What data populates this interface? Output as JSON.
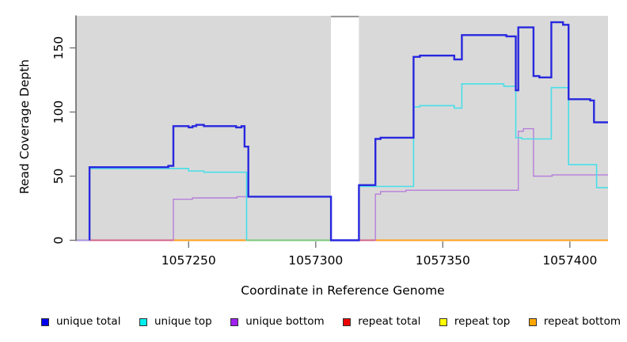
{
  "figure": {
    "x_axis_title": "Coordinate in Reference Genome",
    "y_axis_title": "Read Coverage Depth"
  },
  "chart_data": {
    "type": "line",
    "subtype": "step",
    "title": "",
    "xlabel": "Coordinate in Reference Genome",
    "ylabel": "Read Coverage Depth",
    "xlim": [
      1057206,
      1057415
    ],
    "ylim": [
      0,
      175
    ],
    "x_ticks": [
      1057250,
      1057300,
      1057350,
      1057400
    ],
    "y_ticks": [
      0,
      50,
      100,
      150
    ],
    "grid": false,
    "legend_position": "bottom",
    "panel_background": "#d9d9d9",
    "no_data_gap": {
      "from": 1057306,
      "to": 1057317
    },
    "series": [
      {
        "name": "repeat total",
        "color": "#cc4444",
        "width": 1.3,
        "points": [
          [
            1057206,
            0
          ],
          [
            1057415,
            0
          ]
        ]
      },
      {
        "name": "repeat top",
        "color": "#f0f046",
        "width": 1.3,
        "points": [
          [
            1057206,
            0
          ],
          [
            1057415,
            0
          ]
        ]
      },
      {
        "name": "repeat bottom",
        "color": "#ff9f1a",
        "width": 2.0,
        "points": [
          [
            1057206,
            0
          ],
          [
            1057415,
            0
          ]
        ]
      },
      {
        "name": "unique bottom",
        "color": "#b67edb",
        "width": 1.4,
        "points": [
          [
            1057206,
            0
          ],
          [
            1057244,
            32
          ],
          [
            1057251.5,
            33
          ],
          [
            1057269,
            34
          ],
          [
            1057306,
            0
          ],
          [
            1057323.5,
            36
          ],
          [
            1057325.5,
            38
          ],
          [
            1057335.5,
            39
          ],
          [
            1057379.7,
            85
          ],
          [
            1057381.7,
            87
          ],
          [
            1057385.7,
            50
          ],
          [
            1057393,
            51
          ],
          [
            1057415,
            51
          ]
        ]
      },
      {
        "name": "unique top",
        "color": "#49dfe8",
        "width": 1.6,
        "points": [
          [
            1057211,
            0
          ],
          [
            1057211,
            56
          ],
          [
            1057250,
            54
          ],
          [
            1057256,
            53
          ],
          [
            1057272.8,
            0
          ],
          [
            1057317,
            42
          ],
          [
            1057338.5,
            104
          ],
          [
            1057341,
            105
          ],
          [
            1057354.5,
            103
          ],
          [
            1057357.5,
            122
          ],
          [
            1057374,
            120
          ],
          [
            1057378.7,
            80
          ],
          [
            1057381,
            79
          ],
          [
            1057392.7,
            119
          ],
          [
            1057399.5,
            59
          ],
          [
            1057410.5,
            41
          ],
          [
            1057415,
            41
          ]
        ]
      },
      {
        "name": "unique total",
        "color": "#2828de",
        "width": 2.4,
        "points": [
          [
            1057211,
            0
          ],
          [
            1057211,
            57
          ],
          [
            1057242,
            58
          ],
          [
            1057244,
            89
          ],
          [
            1057250,
            88
          ],
          [
            1057251.5,
            89
          ],
          [
            1057253,
            90
          ],
          [
            1057256,
            89
          ],
          [
            1057268.7,
            88
          ],
          [
            1057270.8,
            89
          ],
          [
            1057272,
            73
          ],
          [
            1057273.5,
            34
          ],
          [
            1057306,
            0
          ],
          [
            1057317,
            43
          ],
          [
            1057323.5,
            79
          ],
          [
            1057325.5,
            80
          ],
          [
            1057338.5,
            143
          ],
          [
            1057341,
            144
          ],
          [
            1057354.5,
            141
          ],
          [
            1057357.5,
            160
          ],
          [
            1057375,
            159
          ],
          [
            1057378.7,
            117
          ],
          [
            1057379.7,
            166
          ],
          [
            1057385.7,
            128
          ],
          [
            1057388,
            127
          ],
          [
            1057392.7,
            170
          ],
          [
            1057397.3,
            168
          ],
          [
            1057399.5,
            110
          ],
          [
            1057408,
            109
          ],
          [
            1057409.5,
            92
          ],
          [
            1057415,
            92
          ]
        ]
      }
    ],
    "zero_line_overlays": [
      {
        "from": 1057273,
        "to": 1057306,
        "color": "#74c87a",
        "width": 1.8
      },
      {
        "from": 1057211,
        "to": 1057244,
        "color": "#d2608a",
        "width": 1.8
      },
      {
        "from": 1057317,
        "to": 1057323.5,
        "color": "#d2608a",
        "width": 1.8
      },
      {
        "from": 1057206,
        "to": 1057211,
        "color": "#a391ea",
        "width": 1.8
      }
    ]
  },
  "legend": {
    "items": [
      {
        "label": "unique total",
        "color": "#0000EE"
      },
      {
        "label": "unique top",
        "color": "#00EEEE"
      },
      {
        "label": "unique bottom",
        "color": "#A020F0"
      },
      {
        "label": "repeat total",
        "color": "#EE0000"
      },
      {
        "label": "repeat top",
        "color": "#FFFF00"
      },
      {
        "label": "repeat bottom",
        "color": "#FFA500"
      }
    ]
  }
}
